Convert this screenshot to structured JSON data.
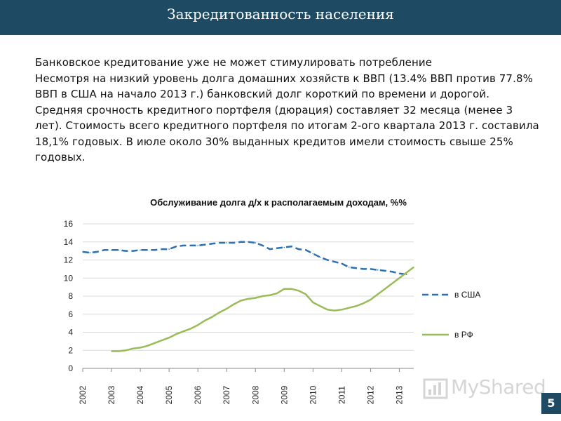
{
  "slide": {
    "title": "Закредитованность населения",
    "page_number": "5"
  },
  "body": {
    "paragraphs": [
      "Банковское кредитование уже не может стимулировать потребление",
      "Несмотря на низкий уровень долга домашних хозяйств к ВВП (13.4% ВВП против 77.8% ВВП в США на начало 2013 г.) банковский долг короткий по времени и дорогой. Средняя срочность кредитного портфеля (дюрация) составляет 32 месяца (менее 3 лет). Стоимость всего кредитного портфеля по итогам 2-ого квартала 2013 г. составила 18,1% годовых. В июле около 30% выданных кредитов имели стоимость свыше 25% годовых."
    ]
  },
  "watermark": {
    "text": "MyShared",
    "icon": "bar-chart-logo-icon"
  },
  "colors": {
    "title_bar": "#1f4a63",
    "usa": "#2e6fb0",
    "rf": "#9bbb59",
    "grid": "#d9d9d9"
  },
  "chart_data": {
    "type": "line",
    "title": "Обслуживание долга д/х к располагаемым доходам, %%",
    "xlabel": "",
    "ylabel": "",
    "ylim": [
      0,
      16
    ],
    "xlim": [
      2002,
      2013.5
    ],
    "y_ticks": [
      "0",
      "2",
      "4",
      "6",
      "8",
      "10",
      "12",
      "14",
      "16"
    ],
    "x_ticks": [
      "2002",
      "2003",
      "2004",
      "2005",
      "2006",
      "2007",
      "2008",
      "2009",
      "2010",
      "2011",
      "2012",
      "2013"
    ],
    "grid": true,
    "legend_position": "right",
    "series": [
      {
        "name": "в США",
        "style": "dashed",
        "color": "#2e6fb0",
        "x": [
          2002.0,
          2002.25,
          2002.5,
          2002.75,
          2003.0,
          2003.25,
          2003.5,
          2003.75,
          2004.0,
          2004.25,
          2004.5,
          2004.75,
          2005.0,
          2005.25,
          2005.5,
          2005.75,
          2006.0,
          2006.25,
          2006.5,
          2006.75,
          2007.0,
          2007.25,
          2007.5,
          2007.75,
          2008.0,
          2008.25,
          2008.5,
          2008.75,
          2009.0,
          2009.25,
          2009.5,
          2009.75,
          2010.0,
          2010.25,
          2010.5,
          2010.75,
          2011.0,
          2011.25,
          2011.5,
          2011.75,
          2012.0,
          2012.25,
          2012.5,
          2012.75,
          2013.0,
          2013.25
        ],
        "y": [
          12.9,
          12.8,
          12.9,
          13.1,
          13.1,
          13.1,
          13.0,
          13.0,
          13.1,
          13.1,
          13.1,
          13.2,
          13.2,
          13.5,
          13.6,
          13.6,
          13.6,
          13.7,
          13.8,
          13.9,
          13.9,
          13.9,
          14.0,
          14.0,
          13.9,
          13.6,
          13.2,
          13.3,
          13.4,
          13.5,
          13.2,
          13.1,
          12.7,
          12.3,
          12.0,
          11.8,
          11.6,
          11.2,
          11.1,
          11.0,
          11.0,
          10.9,
          10.8,
          10.7,
          10.5,
          10.4
        ]
      },
      {
        "name": "в РФ",
        "style": "solid",
        "color": "#9bbb59",
        "x": [
          2003.0,
          2003.25,
          2003.5,
          2003.75,
          2004.0,
          2004.25,
          2004.5,
          2004.75,
          2005.0,
          2005.25,
          2005.5,
          2005.75,
          2006.0,
          2006.25,
          2006.5,
          2006.75,
          2007.0,
          2007.25,
          2007.5,
          2007.75,
          2008.0,
          2008.25,
          2008.5,
          2008.75,
          2009.0,
          2009.25,
          2009.5,
          2009.75,
          2010.0,
          2010.25,
          2010.5,
          2010.75,
          2011.0,
          2011.25,
          2011.5,
          2011.75,
          2012.0,
          2012.25,
          2012.5,
          2012.75,
          2013.0,
          2013.25,
          2013.5
        ],
        "y": [
          1.9,
          1.9,
          2.0,
          2.2,
          2.3,
          2.5,
          2.8,
          3.1,
          3.4,
          3.8,
          4.1,
          4.4,
          4.8,
          5.3,
          5.7,
          6.2,
          6.6,
          7.1,
          7.5,
          7.7,
          7.8,
          8.0,
          8.1,
          8.3,
          8.8,
          8.8,
          8.6,
          8.2,
          7.3,
          6.9,
          6.5,
          6.4,
          6.5,
          6.7,
          6.9,
          7.2,
          7.6,
          8.2,
          8.8,
          9.4,
          10.0,
          10.6,
          11.2
        ]
      }
    ]
  }
}
